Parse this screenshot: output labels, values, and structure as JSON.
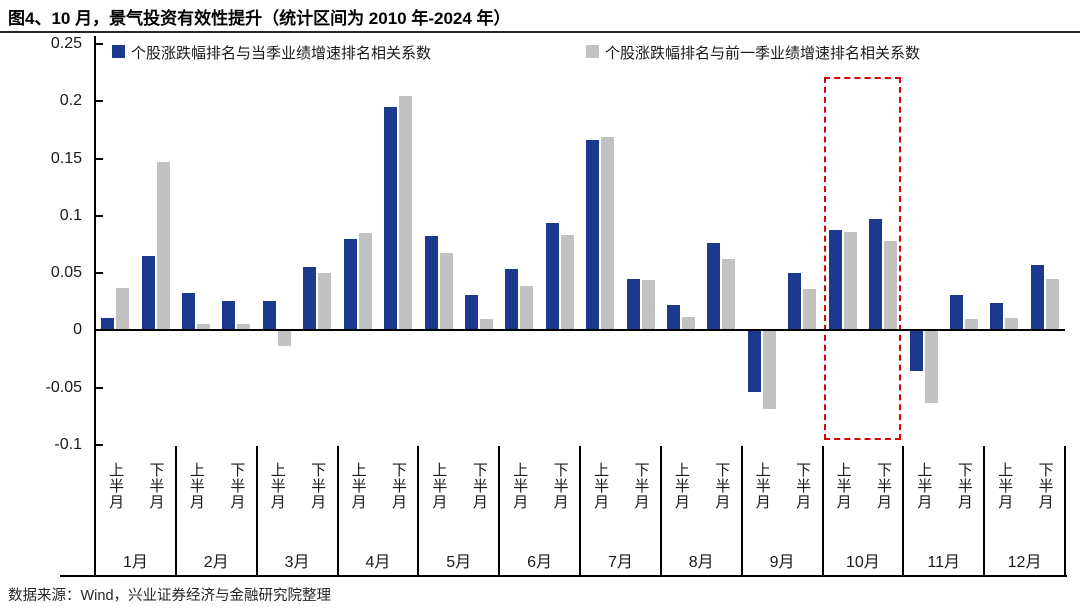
{
  "title": "图4、10 月，景气投资有效性提升（统计区间为 2010 年-2024 年）",
  "source": "数据来源：Wind，兴业证券经济与金融研究院整理",
  "colors": {
    "current_series": "#1B3A8F",
    "previous_series": "#C2C2C2",
    "highlight": "#DD0000",
    "axis": "#000000"
  },
  "chart_data": {
    "type": "bar",
    "title": "图4、10 月，景气投资有效性提升（统计区间为 2010 年-2024 年）",
    "legend": [
      "个股涨跌幅排名与当季业绩增速排名相关系数",
      "个股涨跌幅排名与前一季业绩增速排名相关系数"
    ],
    "legend_position": "top-inside",
    "grid": false,
    "ylim": [
      -0.1,
      0.25
    ],
    "y_tick_labels": [
      "0.25",
      "0.2",
      "0.15",
      "0.1",
      "0.05",
      "0",
      "-0.05",
      "-0.1"
    ],
    "y_tick_values": [
      0.25,
      0.2,
      0.15,
      0.1,
      0.05,
      0,
      -0.05,
      -0.1
    ],
    "months": [
      "1月",
      "2月",
      "3月",
      "4月",
      "5月",
      "6月",
      "7月",
      "8月",
      "9月",
      "10月",
      "11月",
      "12月"
    ],
    "half_labels": [
      "上半月",
      "下半月"
    ],
    "highlight_month": "10月",
    "series": [
      {
        "name": "个股涨跌幅排名与当季业绩增速排名相关系数",
        "color": "#1B3A8F",
        "values": [
          0.011,
          0.065,
          0.033,
          0.026,
          0.026,
          0.055,
          0.08,
          0.195,
          0.082,
          0.031,
          0.054,
          0.094,
          0.166,
          0.045,
          0.022,
          0.076,
          -0.054,
          0.05,
          0.088,
          0.097,
          -0.035,
          0.031,
          0.024,
          0.057
        ]
      },
      {
        "name": "个股涨跌幅排名与前一季业绩增速排名相关系数",
        "color": "#C2C2C2",
        "values": [
          0.037,
          0.147,
          0.006,
          0.006,
          -0.014,
          0.05,
          0.085,
          0.205,
          0.068,
          0.01,
          0.039,
          0.083,
          0.169,
          0.044,
          0.012,
          0.062,
          -0.069,
          0.036,
          0.086,
          0.078,
          -0.063,
          0.01,
          0.011,
          0.045
        ]
      }
    ]
  }
}
